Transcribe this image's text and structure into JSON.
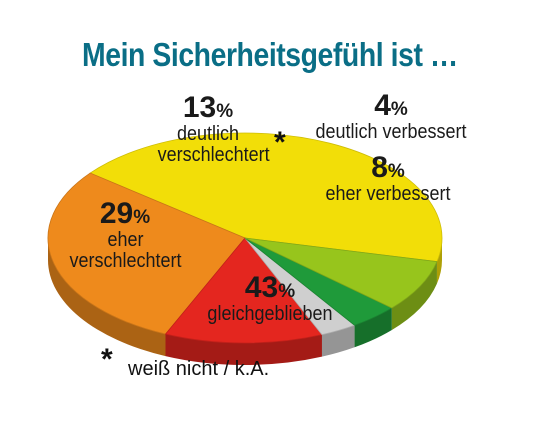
{
  "title": "Mein Sicherheitsgefühl ist …",
  "colors": {
    "title": "#0a6e86"
  },
  "chart_data": {
    "type": "pie",
    "title": "Mein Sicherheitsgefühl ist …",
    "slices": [
      {
        "label": "gleichgeblieben",
        "value": 43,
        "value_label": "43",
        "color": "#f2de08"
      },
      {
        "label": "eher verschlechtert",
        "value": 29,
        "value_label": "29",
        "color": "#ee8a1c"
      },
      {
        "label": "deutlich verschlechtert",
        "value": 13,
        "value_label": "13",
        "color": "#e4261f"
      },
      {
        "label": "weiß nicht / k.A.",
        "value": 3,
        "value_label": "",
        "color": "#cfcfcf"
      },
      {
        "label": "deutlich verbessert",
        "value": 4,
        "value_label": "4",
        "color": "#1f9a3a"
      },
      {
        "label": "eher verbessert",
        "value": 8,
        "value_label": "8",
        "color": "#97c51c"
      }
    ],
    "unit": "%",
    "star": "*",
    "footnote": "weiß nicht / k.A."
  }
}
